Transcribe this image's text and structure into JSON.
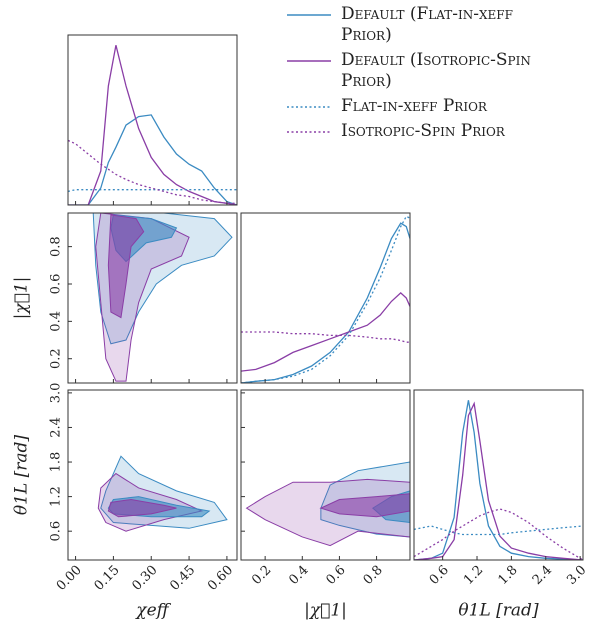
{
  "chart_data": {
    "type": "corner",
    "legend": [
      {
        "name": "Default (Flat-in-χeff Prior)",
        "color": "#3b8bc2",
        "dash": "solid"
      },
      {
        "name": "Default (Isotropic-Spin Prior)",
        "color": "#8a3ea6",
        "dash": "solid"
      },
      {
        "name": "Flat-in-χeff Prior",
        "color": "#3b8bc2",
        "dash": "dotted"
      },
      {
        "name": "Isotropic-Spin Prior",
        "color": "#8a3ea6",
        "dash": "dotted"
      }
    ],
    "axes": [
      {
        "label": "χeff",
        "lim": [
          -0.03,
          0.64
        ],
        "ticks": [
          {
            "value": 0,
            "label": "0.00"
          },
          0.15,
          {
            "value": 0.3,
            "label": "0.30"
          },
          0.45,
          {
            "value": 0.6,
            "label": "0.60"
          }
        ]
      },
      {
        "label": "|χ⃗1|",
        "lim": [
          0.07,
          0.98
        ],
        "ticks": [
          0.2,
          0.4,
          0.6,
          0.8
        ]
      },
      {
        "label": "θ1L [rad]",
        "lim": [
          0.1,
          3.05
        ],
        "ticks": [
          0.6,
          1.2,
          1.8,
          2.4,
          {
            "value": 3,
            "label": "3.0"
          }
        ]
      }
    ],
    "diagonal": [
      {
        "ylim": [
          0,
          1
        ],
        "x": [
          -0.03,
          0.0,
          0.05,
          0.1,
          0.13,
          0.16,
          0.2,
          0.25,
          0.3,
          0.35,
          0.4,
          0.45,
          0.5,
          0.55,
          0.6,
          0.64
        ],
        "curves": [
          [
            0,
            0,
            0,
            0.1,
            0.25,
            0.34,
            0.47,
            0.52,
            0.53,
            0.4,
            0.3,
            0.24,
            0.2,
            0.1,
            0.02,
            0
          ],
          [
            0,
            0,
            0,
            0.2,
            0.7,
            0.94,
            0.7,
            0.45,
            0.28,
            0.18,
            0.12,
            0.08,
            0.05,
            0.02,
            0.01,
            0
          ],
          [
            0.08,
            0.09,
            0.09,
            0.09,
            0.09,
            0.09,
            0.09,
            0.09,
            0.09,
            0.09,
            0.09,
            0.09,
            0.09,
            0.09,
            0.09,
            0.09
          ],
          [
            0.38,
            0.36,
            0.3,
            0.24,
            0.21,
            0.18,
            0.15,
            0.12,
            0.1,
            0.08,
            0.06,
            0.05,
            0.03,
            0.02,
            0.01,
            0.01
          ]
        ]
      },
      {
        "ylim": [
          0,
          1
        ],
        "x": [
          0.07,
          0.15,
          0.25,
          0.35,
          0.45,
          0.55,
          0.65,
          0.75,
          0.82,
          0.88,
          0.93,
          0.96,
          0.98
        ],
        "curves": [
          [
            0,
            0.01,
            0.02,
            0.05,
            0.1,
            0.18,
            0.3,
            0.5,
            0.68,
            0.85,
            0.94,
            0.92,
            0.85
          ],
          [
            0.07,
            0.08,
            0.12,
            0.18,
            0.22,
            0.26,
            0.3,
            0.34,
            0.4,
            0.48,
            0.53,
            0.5,
            0.45
          ],
          [
            0,
            0.01,
            0.02,
            0.04,
            0.08,
            0.16,
            0.28,
            0.47,
            0.62,
            0.78,
            0.92,
            0.98,
            0.97
          ],
          [
            0.3,
            0.3,
            0.3,
            0.29,
            0.29,
            0.28,
            0.28,
            0.27,
            0.26,
            0.26,
            0.25,
            0.24,
            0.24
          ]
        ]
      },
      {
        "ylim": [
          0,
          1
        ],
        "x": [
          0.1,
          0.4,
          0.6,
          0.8,
          0.95,
          1.05,
          1.15,
          1.25,
          1.4,
          1.6,
          1.8,
          2.1,
          2.4,
          2.7,
          3.05
        ],
        "curves": [
          [
            0,
            0.01,
            0.04,
            0.25,
            0.75,
            0.94,
            0.75,
            0.45,
            0.2,
            0.08,
            0.04,
            0.02,
            0.01,
            0.005,
            0
          ],
          [
            0,
            0.01,
            0.02,
            0.12,
            0.5,
            0.85,
            0.92,
            0.7,
            0.35,
            0.14,
            0.07,
            0.04,
            0.02,
            0.01,
            0
          ],
          [
            0.18,
            0.2,
            0.18,
            0.16,
            0.15,
            0.15,
            0.15,
            0.15,
            0.15,
            0.15,
            0.16,
            0.17,
            0.18,
            0.19,
            0.2
          ],
          [
            0.02,
            0.08,
            0.12,
            0.17,
            0.2,
            0.22,
            0.24,
            0.26,
            0.28,
            0.3,
            0.28,
            0.22,
            0.14,
            0.07,
            0
          ]
        ]
      }
    ],
    "contours": [
      {
        "regions": [
          {
            "color": "#3b8bc2",
            "opacity": 0.2,
            "x": [
              0.07,
              0.35,
              0.55,
              0.62,
              0.55,
              0.42,
              0.32,
              0.25,
              0.2,
              0.14,
              0.1,
              0.08
            ],
            "y": [
              0.98,
              0.98,
              0.95,
              0.85,
              0.75,
              0.7,
              0.6,
              0.45,
              0.3,
              0.28,
              0.45,
              0.7
            ]
          },
          {
            "color": "#8a3ea6",
            "opacity": 0.2,
            "x": [
              0.1,
              0.3,
              0.45,
              0.42,
              0.3,
              0.25,
              0.22,
              0.2,
              0.16,
              0.12,
              0.1,
              0.08
            ],
            "y": [
              0.98,
              0.95,
              0.85,
              0.75,
              0.68,
              0.5,
              0.3,
              0.08,
              0.08,
              0.2,
              0.5,
              0.8
            ]
          },
          {
            "color": "#3b8bc2",
            "opacity": 0.6,
            "x": [
              0.15,
              0.3,
              0.4,
              0.38,
              0.28,
              0.2,
              0.16,
              0.14
            ],
            "y": [
              0.97,
              0.95,
              0.9,
              0.85,
              0.82,
              0.72,
              0.78,
              0.9
            ]
          },
          {
            "color": "#8a3ea6",
            "opacity": 0.6,
            "x": [
              0.14,
              0.24,
              0.27,
              0.22,
              0.2,
              0.18,
              0.14,
              0.13
            ],
            "y": [
              0.97,
              0.95,
              0.88,
              0.8,
              0.6,
              0.42,
              0.45,
              0.7
            ]
          }
        ]
      },
      {
        "regions": [
          {
            "color": "#3b8bc2",
            "opacity": 0.2,
            "x": [
              0.12,
              0.18,
              0.25,
              0.4,
              0.55,
              0.6,
              0.45,
              0.3,
              0.15,
              0.1
            ],
            "y": [
              1.3,
              1.9,
              1.6,
              1.3,
              1.1,
              0.8,
              0.65,
              0.7,
              0.75,
              1.0
            ]
          },
          {
            "color": "#8a3ea6",
            "opacity": 0.2,
            "x": [
              0.1,
              0.16,
              0.25,
              0.4,
              0.5,
              0.35,
              0.2,
              0.12,
              0.09
            ],
            "y": [
              1.35,
              1.6,
              1.35,
              1.15,
              0.95,
              0.8,
              0.6,
              0.75,
              1.0
            ]
          },
          {
            "color": "#3b8bc2",
            "opacity": 0.6,
            "x": [
              0.15,
              0.25,
              0.4,
              0.53,
              0.5,
              0.3,
              0.15,
              0.13
            ],
            "y": [
              1.15,
              1.2,
              1.05,
              0.95,
              0.85,
              0.85,
              0.9,
              1.0
            ]
          },
          {
            "color": "#8a3ea6",
            "opacity": 0.6,
            "x": [
              0.14,
              0.22,
              0.35,
              0.4,
              0.3,
              0.17,
              0.13
            ],
            "y": [
              1.1,
              1.15,
              1.05,
              1.0,
              0.9,
              0.85,
              0.95
            ]
          }
        ]
      },
      {
        "regions": [
          {
            "color": "#3b8bc2",
            "opacity": 0.2,
            "x": [
              0.5,
              0.55,
              0.7,
              0.98,
              0.98,
              0.8,
              0.6,
              0.5
            ],
            "y": [
              1.0,
              1.4,
              1.65,
              1.8,
              0.5,
              0.55,
              0.7,
              0.8
            ]
          },
          {
            "color": "#8a3ea6",
            "opacity": 0.2,
            "x": [
              0.1,
              0.2,
              0.35,
              0.55,
              0.75,
              0.98,
              0.98,
              0.7,
              0.55,
              0.4,
              0.2
            ],
            "y": [
              1.0,
              1.2,
              1.45,
              1.45,
              1.5,
              1.45,
              0.5,
              0.6,
              0.35,
              0.5,
              0.8
            ]
          },
          {
            "color": "#3b8bc2",
            "opacity": 0.6,
            "x": [
              0.78,
              0.88,
              0.98,
              0.98,
              0.85
            ],
            "y": [
              1.0,
              1.2,
              1.3,
              0.75,
              0.8
            ]
          },
          {
            "color": "#8a3ea6",
            "opacity": 0.6,
            "x": [
              0.5,
              0.6,
              0.8,
              0.98,
              0.98,
              0.8,
              0.6
            ],
            "y": [
              1.0,
              1.15,
              1.2,
              1.25,
              0.95,
              0.85,
              0.9
            ]
          }
        ]
      }
    ]
  }
}
